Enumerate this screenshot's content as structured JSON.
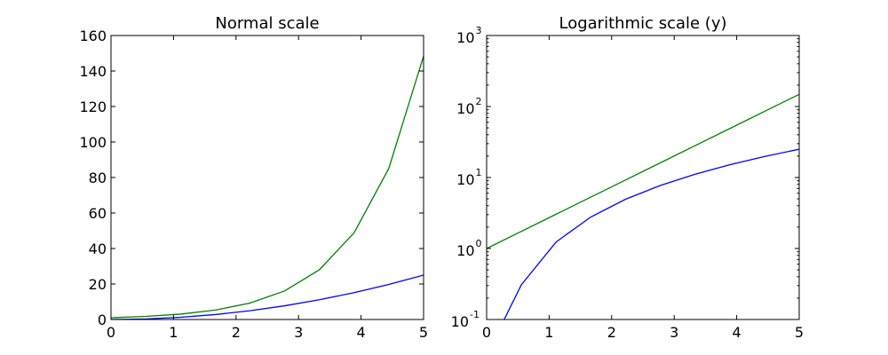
{
  "chart_data": [
    {
      "type": "line",
      "title": "Normal scale",
      "xlabel": "",
      "ylabel": "",
      "yscale": "linear",
      "xlim": [
        0,
        5
      ],
      "ylim": [
        0,
        160
      ],
      "x_ticks": [
        "0",
        "1",
        "2",
        "3",
        "4",
        "5"
      ],
      "y_ticks": [
        "0",
        "20",
        "40",
        "60",
        "80",
        "100",
        "120",
        "140",
        "160"
      ],
      "grid": false,
      "x": [
        0,
        0.556,
        1.111,
        1.667,
        2.222,
        2.778,
        3.333,
        3.889,
        4.444,
        5
      ],
      "series": [
        {
          "color": "#0000ff",
          "values": [
            0,
            0.309,
            1.235,
            2.778,
            4.938,
            7.716,
            11.111,
            15.123,
            19.753,
            25
          ]
        },
        {
          "color": "#008000",
          "values": [
            1,
            1.743,
            3.038,
            5.294,
            9.228,
            16.084,
            28.032,
            48.858,
            85.153,
            148.413
          ]
        }
      ]
    },
    {
      "type": "line",
      "title": "Logarithmic scale (y)",
      "xlabel": "",
      "ylabel": "",
      "yscale": "log",
      "xlim": [
        0,
        5
      ],
      "ylim": [
        0.1,
        1000
      ],
      "x_ticks": [
        "0",
        "1",
        "2",
        "3",
        "4",
        "5"
      ],
      "y_ticks": [
        {
          "base": "10",
          "exp": "-1",
          "value": 0.1
        },
        {
          "base": "10",
          "exp": "0",
          "value": 1
        },
        {
          "base": "10",
          "exp": "1",
          "value": 10
        },
        {
          "base": "10",
          "exp": "2",
          "value": 100
        },
        {
          "base": "10",
          "exp": "3",
          "value": 1000
        }
      ],
      "grid": false,
      "x": [
        0,
        0.556,
        1.111,
        1.667,
        2.222,
        2.778,
        3.333,
        3.889,
        4.444,
        5
      ],
      "series": [
        {
          "color": "#0000ff",
          "values": [
            0,
            0.309,
            1.235,
            2.778,
            4.938,
            7.716,
            11.111,
            15.123,
            19.753,
            25
          ]
        },
        {
          "color": "#008000",
          "values": [
            1,
            1.743,
            3.038,
            5.294,
            9.228,
            16.084,
            28.032,
            48.858,
            85.153,
            148.413
          ]
        }
      ]
    }
  ]
}
